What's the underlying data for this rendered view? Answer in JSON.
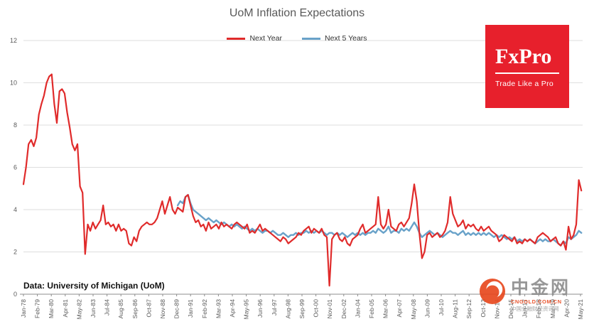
{
  "chart_data": {
    "type": "line",
    "title": "UoM Inflation Expectations",
    "source_note": "Data: University of Michigan (UoM)",
    "xlabel": "",
    "ylabel": "",
    "ylim": [
      0,
      12
    ],
    "y_ticks": [
      0,
      2,
      4,
      6,
      8,
      10,
      12
    ],
    "grid": "horizontal",
    "legend_position": "top-center",
    "x_start_year": 1978,
    "x_tick_step_months": 13,
    "x_ticks": [
      "Jan-78",
      "Feb-79",
      "Mar-80",
      "Apr-81",
      "May-82",
      "Jun-83",
      "Jul-84",
      "Aug-85",
      "Sep-86",
      "Oct-87",
      "Nov-88",
      "Dec-89",
      "Jan-91",
      "Feb-92",
      "Mar-93",
      "Apr-94",
      "May-95",
      "Jun-96",
      "Jul-97",
      "Aug-98",
      "Sep-99",
      "Oct-00",
      "Nov-01",
      "Dec-02",
      "Jan-04",
      "Feb-05",
      "Mar-06",
      "Apr-07",
      "May-08",
      "Jun-09",
      "Jul-10",
      "Aug-11",
      "Sep-12",
      "Oct-13",
      "Nov-14",
      "Dec-15",
      "Jan-17",
      "Feb-18",
      "Mar-19",
      "Apr-20",
      "May-21"
    ],
    "series": [
      {
        "name": "Next Year",
        "color": "#e02b2b",
        "x_start": 1978.0,
        "x_step": 0.2,
        "values": [
          5.2,
          6.0,
          7.1,
          7.3,
          7.0,
          7.4,
          8.5,
          9.0,
          9.4,
          10.0,
          10.3,
          10.4,
          9.0,
          8.1,
          9.6,
          9.7,
          9.5,
          8.6,
          7.9,
          7.1,
          6.8,
          7.1,
          5.1,
          4.8,
          1.9,
          3.3,
          3.0,
          3.4,
          3.1,
          3.3,
          3.5,
          4.2,
          3.3,
          3.4,
          3.2,
          3.3,
          3.0,
          3.3,
          3.0,
          3.1,
          3.0,
          2.4,
          2.3,
          2.7,
          2.5,
          3.0,
          3.2,
          3.3,
          3.4,
          3.3,
          3.3,
          3.4,
          3.6,
          4.0,
          4.4,
          3.8,
          4.2,
          4.6,
          4.0,
          3.8,
          4.1,
          4.0,
          3.9,
          4.6,
          4.7,
          4.2,
          3.7,
          3.4,
          3.5,
          3.2,
          3.3,
          3.0,
          3.4,
          3.1,
          3.2,
          3.3,
          3.1,
          3.4,
          3.2,
          3.3,
          3.2,
          3.1,
          3.3,
          3.4,
          3.3,
          3.2,
          3.1,
          3.3,
          2.9,
          3.0,
          2.9,
          3.1,
          3.3,
          3.0,
          3.1,
          3.0,
          2.9,
          2.8,
          2.7,
          2.6,
          2.5,
          2.7,
          2.6,
          2.4,
          2.5,
          2.6,
          2.7,
          2.9,
          2.8,
          3.0,
          3.1,
          3.2,
          2.9,
          3.1,
          3.0,
          2.9,
          3.1,
          2.8,
          2.7,
          0.4,
          2.6,
          2.8,
          2.9,
          2.6,
          2.5,
          2.7,
          2.4,
          2.3,
          2.6,
          2.7,
          2.8,
          3.1,
          3.3,
          2.9,
          3.0,
          3.1,
          3.2,
          3.3,
          4.6,
          3.3,
          3.1,
          3.3,
          4.0,
          3.2,
          3.1,
          3.0,
          3.3,
          3.4,
          3.2,
          3.4,
          3.6,
          4.3,
          5.2,
          4.4,
          2.9,
          1.7,
          2.0,
          2.8,
          2.9,
          2.7,
          2.8,
          2.9,
          2.7,
          2.8,
          3.0,
          3.4,
          4.6,
          3.8,
          3.5,
          3.2,
          3.3,
          3.5,
          3.1,
          3.3,
          3.2,
          3.3,
          3.1,
          3.0,
          3.2,
          3.0,
          3.1,
          3.2,
          3.0,
          2.9,
          2.8,
          2.5,
          2.6,
          2.8,
          2.7,
          2.6,
          2.5,
          2.7,
          2.4,
          2.5,
          2.4,
          2.6,
          2.5,
          2.6,
          2.5,
          2.4,
          2.7,
          2.8,
          2.9,
          2.8,
          2.7,
          2.5,
          2.6,
          2.7,
          2.4,
          2.3,
          2.5,
          2.1,
          3.2,
          2.6,
          2.8,
          3.3,
          5.4,
          4.9
        ]
      },
      {
        "name": "Next 5 Years",
        "color": "#69a2c9",
        "x_start": 1990.0,
        "x_step": 0.2,
        "values": [
          4.2,
          4.4,
          4.3,
          4.6,
          4.7,
          4.3,
          4.0,
          3.9,
          3.8,
          3.7,
          3.6,
          3.5,
          3.6,
          3.5,
          3.4,
          3.5,
          3.4,
          3.3,
          3.4,
          3.3,
          3.2,
          3.3,
          3.2,
          3.3,
          3.2,
          3.1,
          3.2,
          3.1,
          3.0,
          3.1,
          3.0,
          3.1,
          3.0,
          2.9,
          3.0,
          3.0,
          2.9,
          3.0,
          2.9,
          2.8,
          2.8,
          2.9,
          2.8,
          2.7,
          2.8,
          2.8,
          2.9,
          2.8,
          2.9,
          2.9,
          3.0,
          2.9,
          3.0,
          2.9,
          3.0,
          2.9,
          3.0,
          2.9,
          2.8,
          2.9,
          2.9,
          2.8,
          2.9,
          2.8,
          2.9,
          2.8,
          2.7,
          2.8,
          2.9,
          2.8,
          2.9,
          2.8,
          2.9,
          2.8,
          2.9,
          2.9,
          3.0,
          2.9,
          3.1,
          3.0,
          2.9,
          3.0,
          3.2,
          2.9,
          3.0,
          3.0,
          2.9,
          3.1,
          3.0,
          3.1,
          3.0,
          3.2,
          3.4,
          3.2,
          2.9,
          2.7,
          2.8,
          2.9,
          3.0,
          2.9,
          2.8,
          2.9,
          2.8,
          2.7,
          2.8,
          2.9,
          3.0,
          2.9,
          2.9,
          2.8,
          2.9,
          3.0,
          2.8,
          2.9,
          2.8,
          2.9,
          2.8,
          2.9,
          2.8,
          2.9,
          2.8,
          2.9,
          2.8,
          2.7,
          2.8,
          2.7,
          2.8,
          2.7,
          2.6,
          2.7,
          2.6,
          2.7,
          2.5,
          2.6,
          2.5,
          2.6,
          2.5,
          2.6,
          2.5,
          2.4,
          2.5,
          2.6,
          2.5,
          2.6,
          2.5,
          2.5,
          2.6,
          2.5,
          2.4,
          2.3,
          2.5,
          2.4,
          2.7,
          2.6,
          2.7,
          2.8,
          3.0,
          2.9
        ]
      }
    ]
  },
  "branding": {
    "logo_text": "FxPro",
    "tagline": "Trade Like a Pro",
    "bg_color": "#e7202c"
  },
  "watermark": {
    "name": "中金网",
    "url": "CNGOLD.COM.CN",
    "desc": "中国金融财经资讯网"
  }
}
